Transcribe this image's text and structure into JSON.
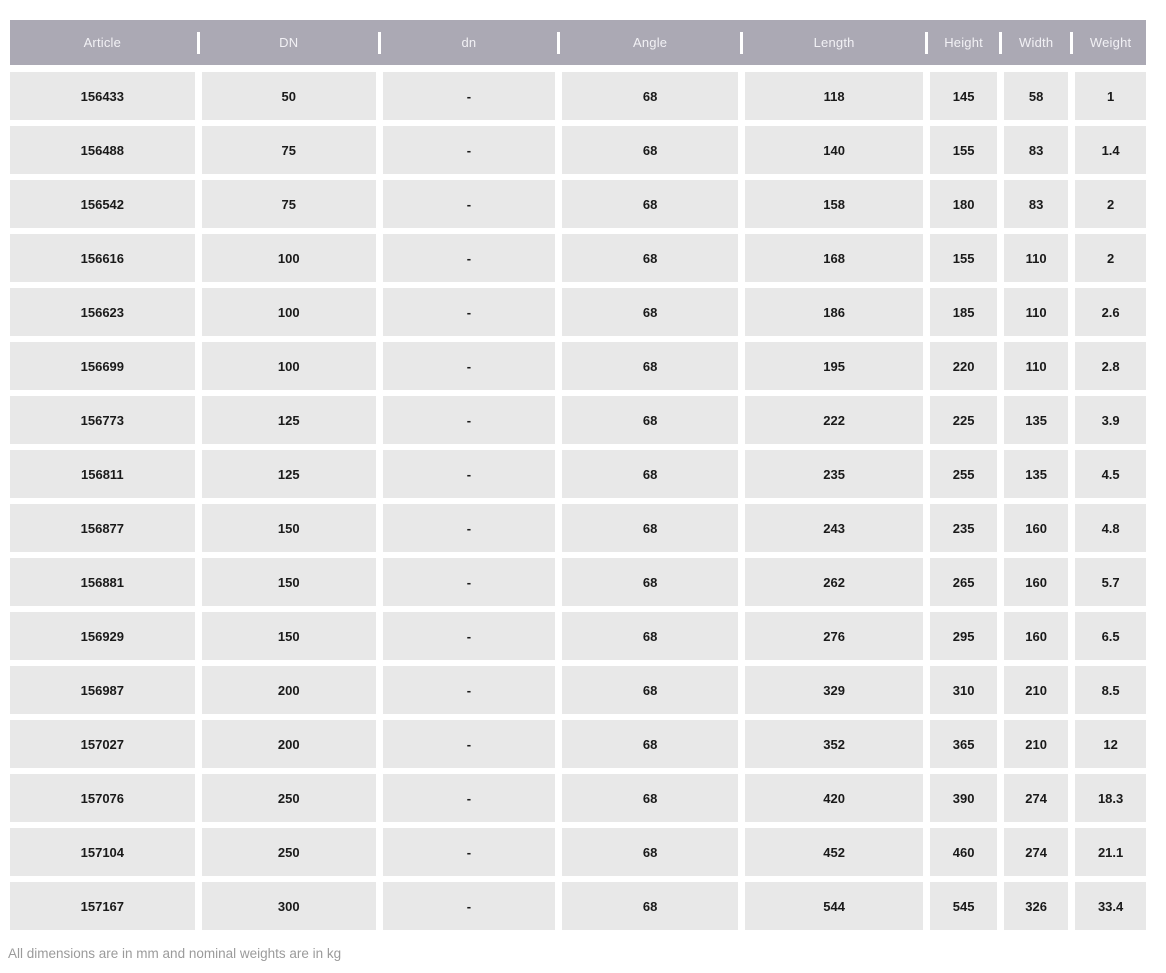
{
  "chart_data": {
    "type": "table",
    "title": "",
    "columns": [
      "Article",
      "DN",
      "dn",
      "Angle",
      "Length",
      "Height",
      "Width",
      "Weight"
    ],
    "rows": [
      [
        "156433",
        "50",
        "-",
        "68",
        "118",
        "145",
        "58",
        "1"
      ],
      [
        "156488",
        "75",
        "-",
        "68",
        "140",
        "155",
        "83",
        "1.4"
      ],
      [
        "156542",
        "75",
        "-",
        "68",
        "158",
        "180",
        "83",
        "2"
      ],
      [
        "156616",
        "100",
        "-",
        "68",
        "168",
        "155",
        "110",
        "2"
      ],
      [
        "156623",
        "100",
        "-",
        "68",
        "186",
        "185",
        "110",
        "2.6"
      ],
      [
        "156699",
        "100",
        "-",
        "68",
        "195",
        "220",
        "110",
        "2.8"
      ],
      [
        "156773",
        "125",
        "-",
        "68",
        "222",
        "225",
        "135",
        "3.9"
      ],
      [
        "156811",
        "125",
        "-",
        "68",
        "235",
        "255",
        "135",
        "4.5"
      ],
      [
        "156877",
        "150",
        "-",
        "68",
        "243",
        "235",
        "160",
        "4.8"
      ],
      [
        "156881",
        "150",
        "-",
        "68",
        "262",
        "265",
        "160",
        "5.7"
      ],
      [
        "156929",
        "150",
        "-",
        "68",
        "276",
        "295",
        "160",
        "6.5"
      ],
      [
        "156987",
        "200",
        "-",
        "68",
        "329",
        "310",
        "210",
        "8.5"
      ],
      [
        "157027",
        "200",
        "-",
        "68",
        "352",
        "365",
        "210",
        "12"
      ],
      [
        "157076",
        "250",
        "-",
        "68",
        "420",
        "390",
        "274",
        "18.3"
      ],
      [
        "157104",
        "250",
        "-",
        "68",
        "452",
        "460",
        "274",
        "21.1"
      ],
      [
        "157167",
        "300",
        "-",
        "68",
        "544",
        "545",
        "326",
        "33.4"
      ]
    ]
  },
  "footer": {
    "note": "All dimensions are in mm and nominal weights are in kg"
  },
  "colors": {
    "header_bg": "#aba9b4",
    "header_text": "#f2f1f5",
    "cell_bg": "#e8e8e8",
    "cell_text": "#1a1a1a",
    "note_text": "#9b9b9b",
    "separator": "#ffffff",
    "page_bg": "#ffffff"
  }
}
